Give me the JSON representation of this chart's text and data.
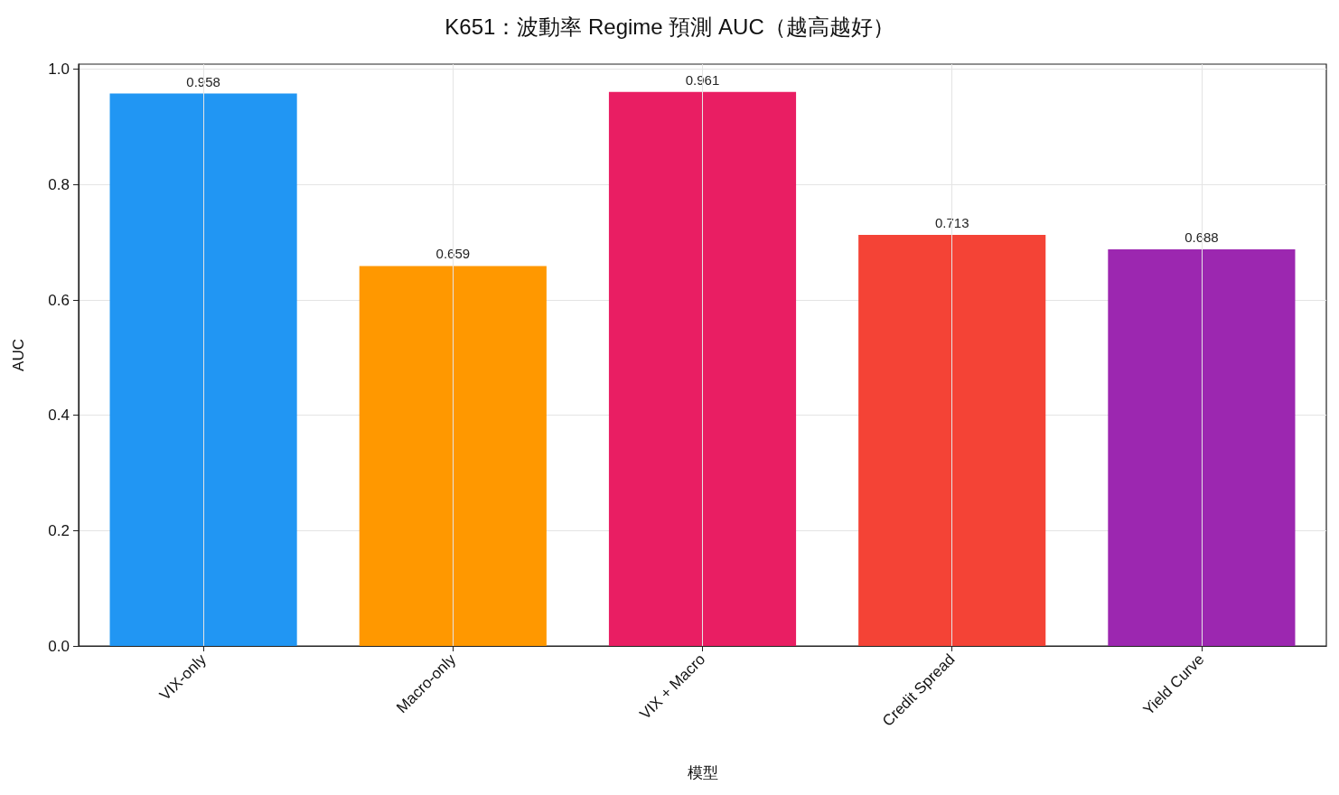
{
  "chart_data": {
    "type": "bar",
    "title": "K651：波動率 Regime 預測 AUC（越高越好）",
    "xlabel": "模型",
    "ylabel": "AUC",
    "categories": [
      "VIX-only",
      "Macro-only",
      "VIX + Macro",
      "Credit Spread",
      "Yield Curve"
    ],
    "values": [
      0.958,
      0.659,
      0.961,
      0.713,
      0.688
    ],
    "colors": [
      "#2196f3",
      "#ff9800",
      "#e91e63",
      "#f44336",
      "#9c27b0"
    ],
    "data_labels": true,
    "ylim": [
      0,
      1.009
    ],
    "yticks": [
      {
        "value": 0,
        "label": "0.0"
      },
      0.2,
      0.4,
      0.6,
      0.8,
      {
        "value": 1,
        "label": "1.0"
      }
    ],
    "grid": true
  }
}
